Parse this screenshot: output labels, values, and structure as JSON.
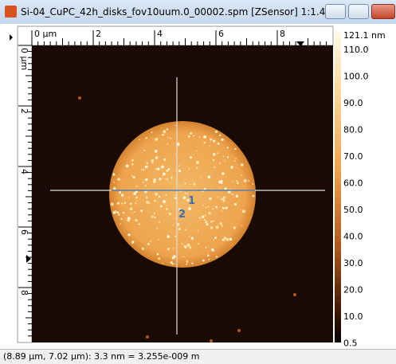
{
  "window": {
    "title": "Si-04_CuPC_42h_disks_fov10uum.0_00002.spm [ZSensor] 1:1.4 ..."
  },
  "top_ruler": {
    "labels": [
      "0 µm",
      "2",
      "4",
      "6",
      "8"
    ]
  },
  "left_ruler": {
    "labels": [
      "0 µm",
      "2",
      "4",
      "6",
      "8"
    ]
  },
  "crosshair": {
    "labels": [
      "1",
      "2"
    ]
  },
  "colorbar": {
    "labels": [
      "121.1 nm",
      "110.0",
      "100.0",
      "90.0",
      "80.0",
      "70.0",
      "60.0",
      "50.0",
      "40.0",
      "30.0",
      "20.0",
      "10.0",
      "0.5"
    ]
  },
  "status_bar": {
    "text": "(8.89 µm, 7.02 µm): 3.3 nm = 3.255e-009 m"
  }
}
